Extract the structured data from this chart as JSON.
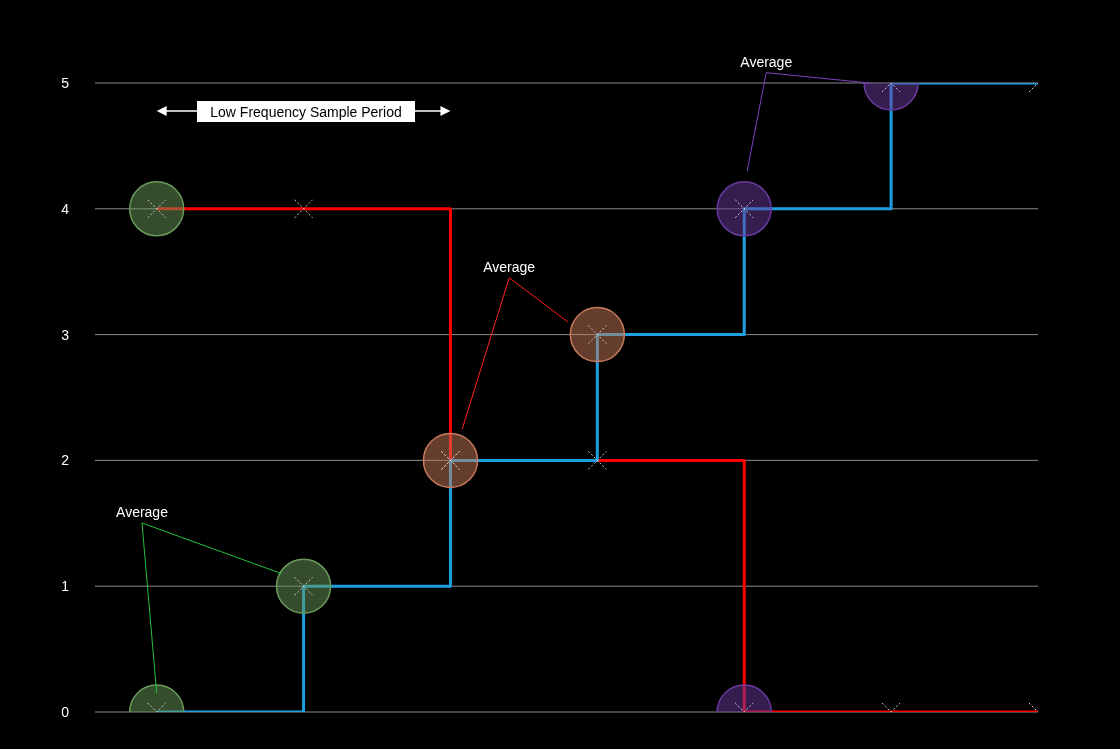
{
  "chart_data": {
    "type": "step",
    "categories": [
      null,
      null,
      null,
      null,
      null,
      null,
      null
    ],
    "series": [
      {
        "type": "scatter",
        "marker": "circle",
        "color": "#6a9a5a",
        "colors": [
          "#6a9a5a",
          "#6a9a5a",
          "#c87a5a",
          "#c87a5a",
          "#6a3aa0",
          "#6a3aa0",
          null
        ],
        "values": [
          0,
          1,
          2,
          3,
          4,
          5,
          null
        ]
      },
      {
        "type": "scatter",
        "marker": "circle",
        "color": "#6a9a5a",
        "colors": [
          "#6a9a5a",
          null,
          null,
          null,
          "#6a3aa0",
          null,
          null
        ],
        "values": [
          4,
          null,
          null,
          null,
          0,
          null,
          null
        ]
      },
      {
        "color": "#ff0000",
        "values": [
          4,
          4,
          2,
          2,
          0,
          0,
          0
        ]
      },
      {
        "color": "#1ea0e0",
        "values": [
          0,
          1,
          2,
          3,
          4,
          5,
          5
        ]
      }
    ],
    "ylim": [
      0,
      5
    ],
    "yticks": [
      0,
      1,
      2,
      3,
      4,
      5
    ],
    "grid": "y",
    "tick_labels": "y",
    "marker": "cross",
    "line_style": "solid",
    "annotations": [
      "Low Frequency Sample Period",
      "Average",
      "Average",
      "Average"
    ]
  }
}
